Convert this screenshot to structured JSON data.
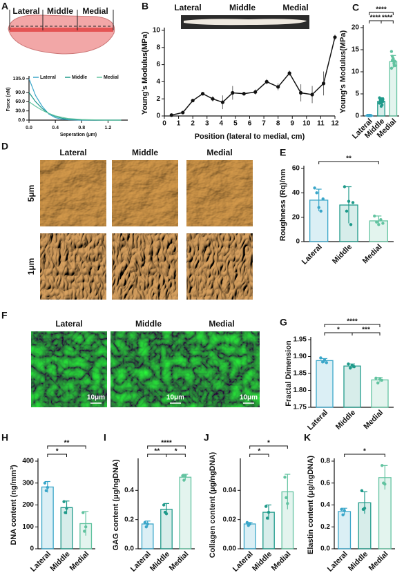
{
  "chart_data": [
    {
      "panel": "A",
      "type": "line",
      "diagram_labels": [
        "Lateral",
        "Middle",
        "Medial"
      ],
      "x": [
        0,
        0.1,
        0.2,
        0.3,
        0.4,
        0.5,
        0.6,
        0.8,
        1.0,
        1.2,
        1.4
      ],
      "series": [
        {
          "name": "Lateral",
          "color": "#3aa6c9",
          "values": [
            135,
            80,
            45,
            20,
            8,
            3,
            1,
            0,
            0,
            0,
            0
          ]
        },
        {
          "name": "Middle",
          "color": "#1f9a8a",
          "values": [
            90,
            60,
            38,
            22,
            12,
            6,
            3,
            1,
            0,
            0,
            0
          ]
        },
        {
          "name": "Medial",
          "color": "#62c3a0",
          "values": [
            60,
            45,
            32,
            22,
            14,
            9,
            5,
            2,
            1,
            0,
            0
          ]
        }
      ],
      "xlim": [
        0,
        1.5
      ],
      "xticks": [
        {
          "value": 0,
          "label": "0.0"
        },
        0.4,
        0.8,
        1.2
      ],
      "ylim": [
        0,
        135
      ],
      "yticks": [
        {
          "value": 0,
          "label": "0.0"
        },
        {
          "value": 30,
          "label": "30.0"
        },
        {
          "value": 60,
          "label": "60.0"
        },
        {
          "value": 90,
          "label": "90.0"
        },
        {
          "value": 135,
          "label": "135.0"
        }
      ],
      "y_label": "Force (nN)",
      "x_label": "Seperation (μm)",
      "legend": "top"
    },
    {
      "panel": "B",
      "type": "line",
      "photo_labels": [
        "Lateral",
        "Middle",
        "Medial"
      ],
      "x": [
        0.5,
        1.3,
        2.0,
        2.7,
        3.4,
        4.1,
        4.8,
        5.6,
        6.4,
        7.2,
        8.0,
        8.8,
        9.6,
        10.4,
        11.2,
        12
      ],
      "values": [
        0.1,
        0.4,
        1.8,
        2.6,
        2.0,
        1.6,
        2.7,
        2.6,
        2.8,
        4.0,
        3.4,
        5.0,
        2.7,
        2.5,
        3.8,
        9.2
      ],
      "errors": [
        0.05,
        0.1,
        0.15,
        0.2,
        0.3,
        0.8,
        0.8,
        0.2,
        0.3,
        0.3,
        0.4,
        0.3,
        1.0,
        1.0,
        1.4,
        0.3
      ],
      "color": "#111111",
      "xlim": [
        0,
        12
      ],
      "xticks": [
        0,
        1,
        2,
        3,
        4,
        5,
        6,
        7,
        8,
        9,
        10,
        11,
        12
      ],
      "ylim": [
        0,
        10
      ],
      "yticks": [
        0,
        2,
        4,
        6,
        8,
        10
      ],
      "y_label": "Young's Modulus(MPa)",
      "x_label": "Position (lateral to medial, cm)"
    },
    {
      "panel": "C",
      "type": "bar",
      "categories": [
        "Lateral",
        "Middle",
        "Medial"
      ],
      "values": [
        0.1,
        3.3,
        12.3
      ],
      "errors": [
        0.1,
        0.8,
        1.4
      ],
      "points": [
        [
          0.1,
          0.05,
          0.15,
          0.1,
          0.08,
          0.12,
          0.1,
          0.06,
          0.1,
          0.09
        ],
        [
          4.1,
          3.6,
          3.0,
          2.5,
          3.8,
          2.9,
          3.4,
          2.2,
          3.9,
          3.3
        ],
        [
          14.6,
          13.5,
          12.8,
          12.0,
          11.4,
          10.8,
          12.6,
          13.0,
          11.9,
          12.4
        ]
      ],
      "colors": [
        "#3aa6c9",
        "#1f9a8a",
        "#62c3a0"
      ],
      "ylim": [
        0,
        20
      ],
      "yticks": [
        0,
        5,
        10,
        15,
        20
      ],
      "y_label": "Young's Modulus(MPa)",
      "comparisons": [
        {
          "label": "****",
          "between": [
            "Lateral",
            "Medial"
          ]
        },
        {
          "label": "****",
          "between": [
            "Lateral",
            "Middle"
          ]
        },
        {
          "label": "****",
          "between": [
            "Middle",
            "Medial"
          ]
        }
      ]
    },
    {
      "panel": "D",
      "type": "image",
      "style": "afm",
      "columns": [
        "Lateral",
        "Middle",
        "Medial"
      ],
      "rows": [
        "5μm",
        "1μm"
      ]
    },
    {
      "panel": "E",
      "type": "bar",
      "categories": [
        "Lateral",
        "Middle",
        "Medial"
      ],
      "values": [
        34,
        30,
        17
      ],
      "errors": [
        9,
        15,
        4
      ],
      "points": [
        [
          44,
          40,
          28,
          25,
          35
        ],
        [
          45,
          25,
          33,
          14,
          32
        ],
        [
          21,
          16,
          14,
          18,
          15
        ]
      ],
      "colors": [
        "#3aa6c9",
        "#1f9a8a",
        "#62c3a0"
      ],
      "ylim": [
        0,
        60
      ],
      "yticks": [
        0,
        20,
        40,
        60
      ],
      "y_label": "Roughness (Rq)/nm",
      "comparisons": [
        {
          "label": "**",
          "between": [
            "Lateral",
            "Medial"
          ]
        }
      ]
    },
    {
      "panel": "F",
      "type": "image",
      "style": "fluorescence",
      "columns": [
        "Lateral",
        "Middle",
        "Medial"
      ],
      "scale_bar": "10μm"
    },
    {
      "panel": "G",
      "type": "bar",
      "categories": [
        "Lateral",
        "Middle",
        "Medial"
      ],
      "values": [
        1.888,
        1.872,
        1.831
      ],
      "errors": [
        0.006,
        0.006,
        0.007
      ],
      "points": [
        [
          1.896,
          1.884,
          1.89,
          1.882
        ],
        [
          1.878,
          1.866,
          1.874,
          1.87
        ],
        [
          1.836,
          1.822,
          1.834,
          1.83
        ]
      ],
      "colors": [
        "#3aa6c9",
        "#1f9a8a",
        "#62c3a0"
      ],
      "ylim": [
        1.75,
        1.95
      ],
      "yticks": [
        1.75,
        {
          "value": 1.8,
          "label": "1.80"
        },
        1.85,
        {
          "value": 1.9,
          "label": "1.90"
        },
        1.95
      ],
      "y_label": "Fractal Dimension",
      "comparisons": [
        {
          "label": "****",
          "between": [
            "Lateral",
            "Medial"
          ]
        },
        {
          "label": "*",
          "between": [
            "Lateral",
            "Middle"
          ]
        },
        {
          "label": "***",
          "between": [
            "Middle",
            "Medial"
          ]
        }
      ]
    },
    {
      "panel": "H",
      "type": "bar",
      "categories": [
        "Lateral",
        "Middle",
        "Medial"
      ],
      "values": [
        282,
        188,
        115
      ],
      "errors": [
        25,
        30,
        55
      ],
      "points": [
        [
          300,
          265,
          280
        ],
        [
          215,
          165,
          185
        ],
        [
          165,
          80,
          100
        ]
      ],
      "colors": [
        "#3aa6c9",
        "#1f9a8a",
        "#62c3a0"
      ],
      "ylim": [
        0,
        400
      ],
      "yticks": [
        0,
        100,
        200,
        300,
        400
      ],
      "y_label": "DNA content (ng/mm³)",
      "comparisons": [
        {
          "label": "**",
          "between": [
            "Lateral",
            "Medial"
          ]
        },
        {
          "label": "*",
          "between": [
            "Lateral",
            "Middle"
          ]
        }
      ]
    },
    {
      "panel": "I",
      "type": "bar",
      "categories": [
        "Lateral",
        "Middle",
        "Medial"
      ],
      "values": [
        0.17,
        0.27,
        0.49
      ],
      "errors": [
        0.02,
        0.04,
        0.02
      ],
      "points": [
        [
          0.18,
          0.15,
          0.17
        ],
        [
          0.3,
          0.25,
          0.24
        ],
        [
          0.5,
          0.47,
          0.5
        ]
      ],
      "colors": [
        "#3aa6c9",
        "#1f9a8a",
        "#62c3a0"
      ],
      "ylim": [
        0,
        0.6
      ],
      "yticks": [
        {
          "value": 0,
          "label": "0.0"
        },
        0.2,
        0.4
      ],
      "y_label": "GAG content (μg/ngDNA)",
      "comparisons": [
        {
          "label": "****",
          "between": [
            "Lateral",
            "Medial"
          ]
        },
        {
          "label": "**",
          "between": [
            "Lateral",
            "Middle"
          ]
        },
        {
          "label": "*",
          "between": [
            "Middle",
            "Medial"
          ]
        }
      ]
    },
    {
      "panel": "J",
      "type": "bar",
      "categories": [
        "Lateral",
        "Middle",
        "Medial"
      ],
      "values": [
        0.017,
        0.025,
        0.039
      ],
      "errors": [
        0.001,
        0.005,
        0.012
      ],
      "points": [
        [
          0.018,
          0.016,
          0.017
        ],
        [
          0.029,
          0.021,
          0.025
        ],
        [
          0.049,
          0.035,
          0.031
        ]
      ],
      "colors": [
        "#3aa6c9",
        "#1f9a8a",
        "#62c3a0"
      ],
      "ylim": [
        0,
        0.06
      ],
      "yticks": [
        {
          "value": 0,
          "label": "0.00"
        },
        0.02,
        0.04
      ],
      "y_label": "Collagen content (μg/ngDNA)",
      "comparisons": [
        {
          "label": "*",
          "between": [
            "Lateral",
            "Medial"
          ]
        },
        {
          "label": "*",
          "between": [
            "Lateral",
            "Middle"
          ]
        }
      ]
    },
    {
      "panel": "K",
      "type": "bar",
      "categories": [
        "Lateral",
        "Middle",
        "Medial"
      ],
      "values": [
        0.34,
        0.42,
        0.65
      ],
      "errors": [
        0.03,
        0.1,
        0.11
      ],
      "points": [
        [
          0.36,
          0.31,
          0.35
        ],
        [
          0.53,
          0.36,
          0.37
        ],
        [
          0.76,
          0.6,
          0.59
        ]
      ],
      "colors": [
        "#3aa6c9",
        "#1f9a8a",
        "#62c3a0"
      ],
      "ylim": [
        0,
        0.8
      ],
      "yticks": [
        {
          "value": 0,
          "label": "0.0"
        },
        0.2,
        0.4,
        0.6,
        0.8
      ],
      "y_label": "Elastin content (μg/ngDNA)",
      "comparisons": [
        {
          "label": "*",
          "between": [
            "Lateral",
            "Medial"
          ]
        }
      ]
    }
  ]
}
